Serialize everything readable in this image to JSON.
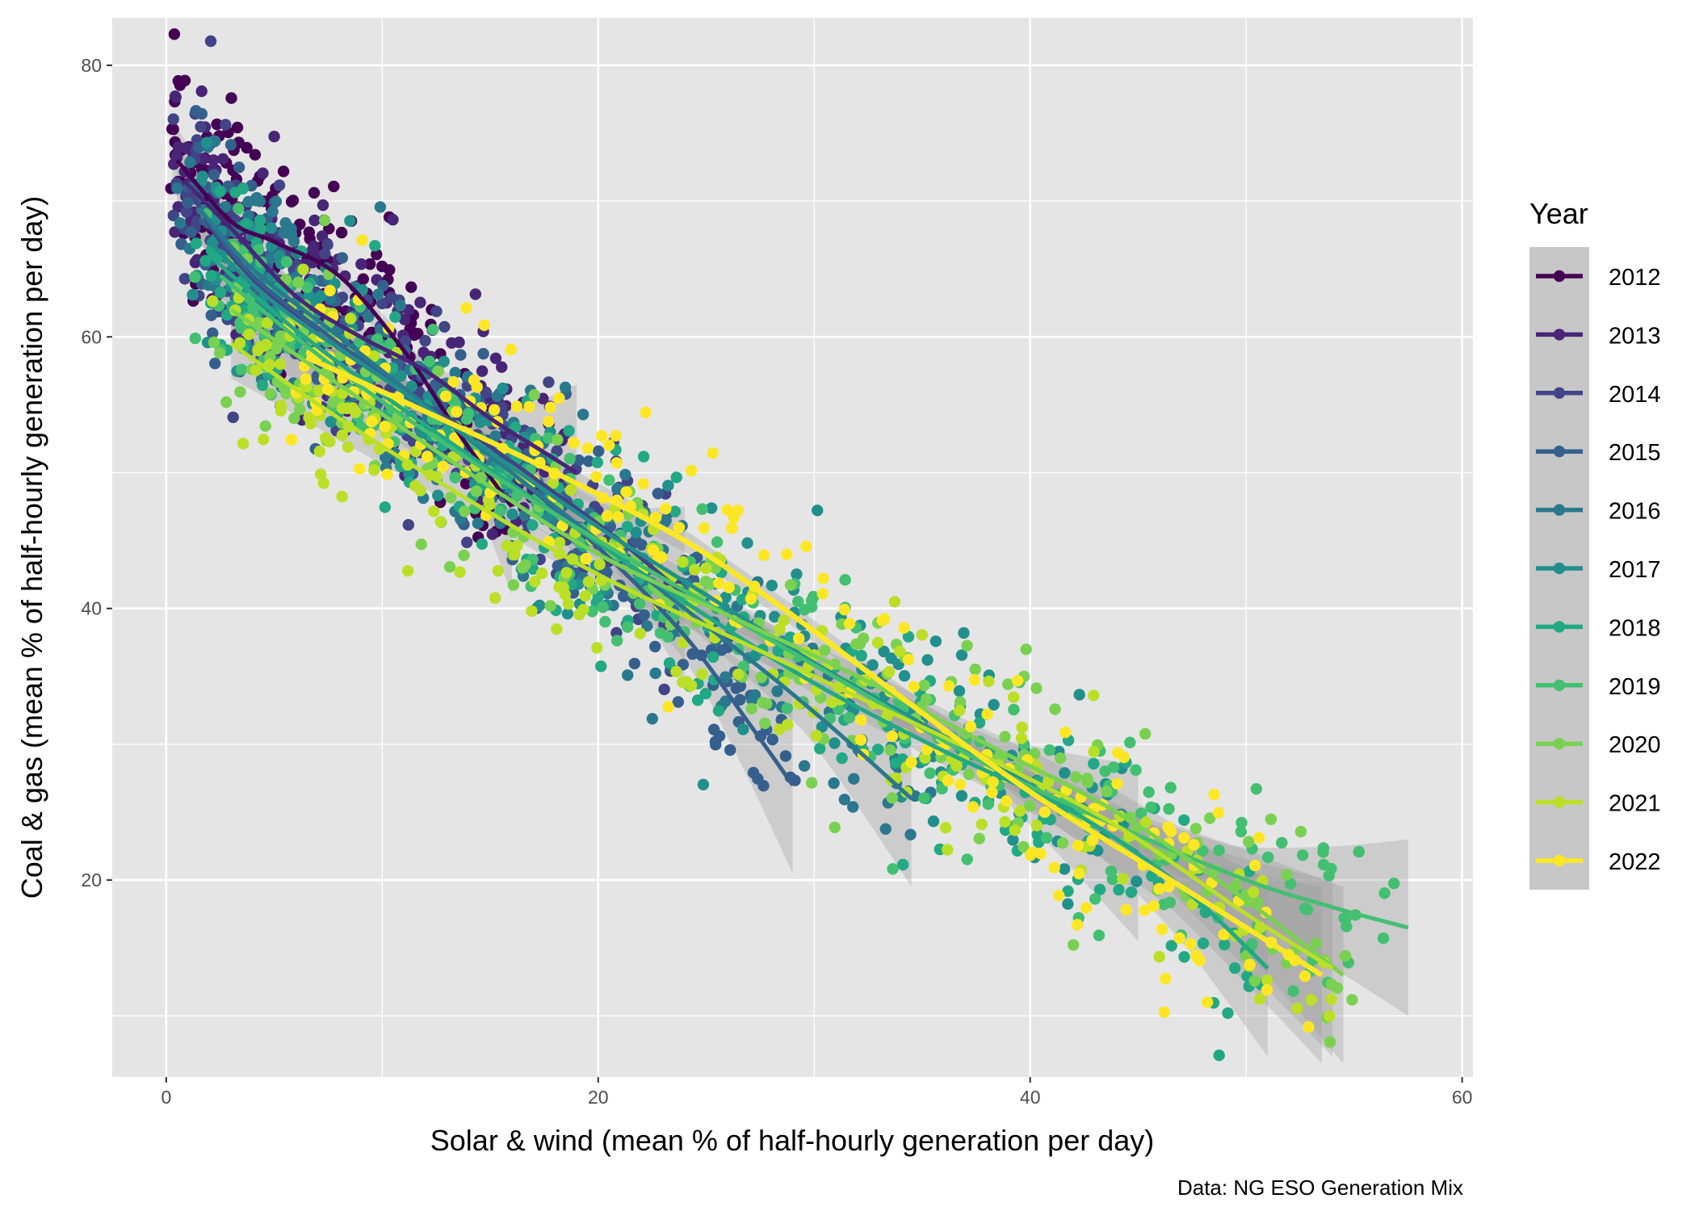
{
  "chart_data": {
    "type": "scatter",
    "title": "",
    "xlabel": "Solar & wind (mean % of half-hourly generation per day)",
    "ylabel": "Coal & gas (mean % of half-hourly generation per day)",
    "caption": "Data: NG ESO Generation Mix",
    "xlim": [
      -2.5,
      60.5
    ],
    "ylim": [
      5.5,
      83.5
    ],
    "x_ticks": [
      0,
      20,
      40,
      60
    ],
    "y_ticks": [
      20,
      40,
      60,
      80
    ],
    "x_tick_labels": [
      "0",
      "20",
      "40",
      "60"
    ],
    "y_tick_labels": [
      "20",
      "40",
      "60",
      "80"
    ],
    "grid": true,
    "legend": {
      "title": "Year",
      "position": "right"
    },
    "series": [
      {
        "name": "2012",
        "color": "#440154",
        "x_range": [
          0.3,
          16
        ],
        "trend": [
          [
            0.5,
            73
          ],
          [
            3,
            68.5
          ],
          [
            5,
            67
          ],
          [
            8,
            64.5
          ],
          [
            11,
            59
          ],
          [
            13.5,
            53
          ],
          [
            16,
            47.5
          ]
        ]
      },
      {
        "name": "2013",
        "color": "#482576",
        "x_range": [
          0.5,
          19
        ],
        "trend": [
          [
            0.8,
            71.5
          ],
          [
            3,
            68
          ],
          [
            6,
            63
          ],
          [
            9,
            60
          ],
          [
            12,
            57.5
          ],
          [
            15,
            54
          ],
          [
            17.5,
            51.5
          ],
          [
            19,
            50
          ]
        ]
      },
      {
        "name": "2014",
        "color": "#414487",
        "x_range": [
          1,
          24
        ],
        "trend": [
          [
            1,
            71
          ],
          [
            3,
            66
          ],
          [
            6,
            61.5
          ],
          [
            10,
            57
          ],
          [
            14,
            53
          ],
          [
            18,
            48.5
          ],
          [
            21,
            45
          ],
          [
            24,
            41
          ]
        ]
      },
      {
        "name": "2015",
        "color": "#35608D",
        "x_range": [
          1.5,
          29
        ],
        "trend": [
          [
            1.5,
            69.5
          ],
          [
            4,
            64.5
          ],
          [
            8,
            59.5
          ],
          [
            12,
            55
          ],
          [
            16,
            50
          ],
          [
            20,
            44.5
          ],
          [
            24,
            38
          ],
          [
            27,
            31.5
          ],
          [
            29,
            27
          ]
        ]
      },
      {
        "name": "2016",
        "color": "#2A788E",
        "x_range": [
          1.5,
          34.5
        ],
        "trend": [
          [
            1.5,
            69.5
          ],
          [
            4,
            65
          ],
          [
            8,
            60
          ],
          [
            12,
            55
          ],
          [
            16,
            50
          ],
          [
            20,
            45
          ],
          [
            24,
            40
          ],
          [
            28,
            35
          ],
          [
            31,
            31
          ],
          [
            34.5,
            26
          ]
        ]
      },
      {
        "name": "2017",
        "color": "#21908C",
        "x_range": [
          2,
          45
        ],
        "trend": [
          [
            2,
            67
          ],
          [
            5,
            62.5
          ],
          [
            10,
            57
          ],
          [
            15,
            51.5
          ],
          [
            20,
            46
          ],
          [
            25,
            41
          ],
          [
            30,
            36
          ],
          [
            35,
            31.5
          ],
          [
            40,
            27
          ],
          [
            45,
            22
          ]
        ]
      },
      {
        "name": "2018",
        "color": "#22A884",
        "x_range": [
          2,
          51
        ],
        "trend": [
          [
            2,
            66
          ],
          [
            6,
            60.5
          ],
          [
            12,
            53.5
          ],
          [
            18,
            47
          ],
          [
            24,
            40.5
          ],
          [
            30,
            34.5
          ],
          [
            36,
            29.5
          ],
          [
            42,
            25
          ],
          [
            47,
            19.5
          ],
          [
            51,
            13.5
          ]
        ]
      },
      {
        "name": "2019",
        "color": "#43BF71",
        "x_range": [
          2.5,
          57.5
        ],
        "trend": [
          [
            2.5,
            64.5
          ],
          [
            8,
            57.5
          ],
          [
            14,
            51
          ],
          [
            20,
            45
          ],
          [
            26,
            39.5
          ],
          [
            32,
            34
          ],
          [
            38,
            28.5
          ],
          [
            44,
            24
          ],
          [
            50,
            20
          ],
          [
            54,
            18
          ],
          [
            57.5,
            16.5
          ]
        ]
      },
      {
        "name": "2020",
        "color": "#7AD151",
        "x_range": [
          3,
          54.5
        ],
        "trend": [
          [
            3,
            62
          ],
          [
            8,
            56.5
          ],
          [
            14,
            50
          ],
          [
            20,
            44
          ],
          [
            26,
            39.5
          ],
          [
            32,
            35
          ],
          [
            38,
            30
          ],
          [
            44,
            25
          ],
          [
            50,
            18.5
          ],
          [
            54.5,
            13
          ]
        ]
      },
      {
        "name": "2021",
        "color": "#BBDF27",
        "x_range": [
          3,
          54
        ],
        "trend": [
          [
            3,
            59.5
          ],
          [
            8,
            54
          ],
          [
            14,
            48
          ],
          [
            20,
            42.5
          ],
          [
            26,
            38
          ],
          [
            32,
            33.5
          ],
          [
            38,
            29
          ],
          [
            44,
            24
          ],
          [
            50,
            17.5
          ],
          [
            54,
            13.5
          ]
        ]
      },
      {
        "name": "2022",
        "color": "#FDE725",
        "x_range": [
          6.5,
          53.5
        ],
        "trend": [
          [
            6.5,
            58.5
          ],
          [
            12,
            54.5
          ],
          [
            18,
            50
          ],
          [
            24,
            45
          ],
          [
            29,
            39.5
          ],
          [
            34,
            33.5
          ],
          [
            40,
            26.5
          ],
          [
            46,
            20.5
          ],
          [
            50,
            16.5
          ],
          [
            53.5,
            13
          ]
        ]
      }
    ]
  }
}
